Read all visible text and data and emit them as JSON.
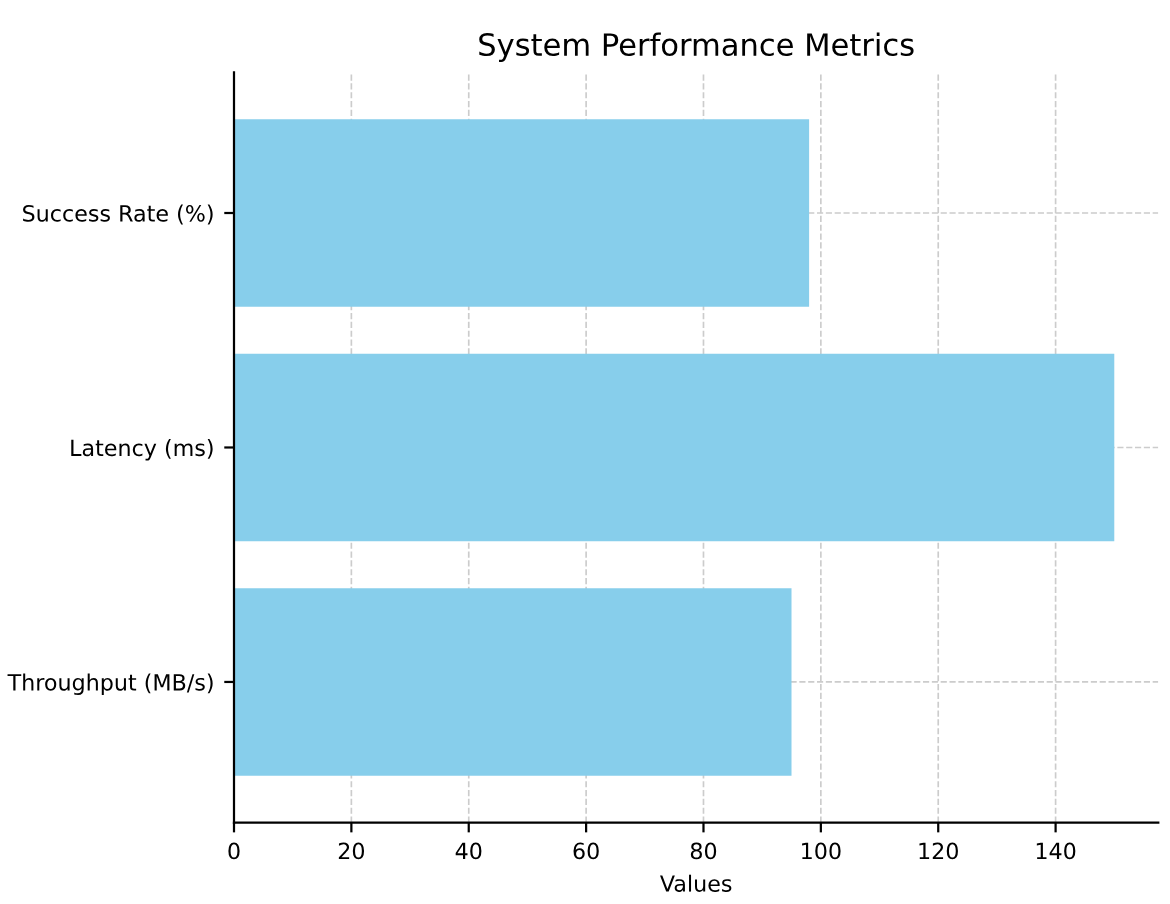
{
  "chart_data": {
    "type": "bar",
    "orientation": "horizontal",
    "title": "System Performance Metrics",
    "xlabel": "Values",
    "categories": [
      "Success Rate (%)",
      "Latency (ms)",
      "Throughput (MB/s)"
    ],
    "values": [
      98,
      150,
      95
    ],
    "color": "#87ceeb",
    "xlim": [
      0,
      157.5
    ],
    "xticks": [
      0,
      20,
      40,
      60,
      80,
      100,
      120,
      140
    ],
    "grid": true
  }
}
